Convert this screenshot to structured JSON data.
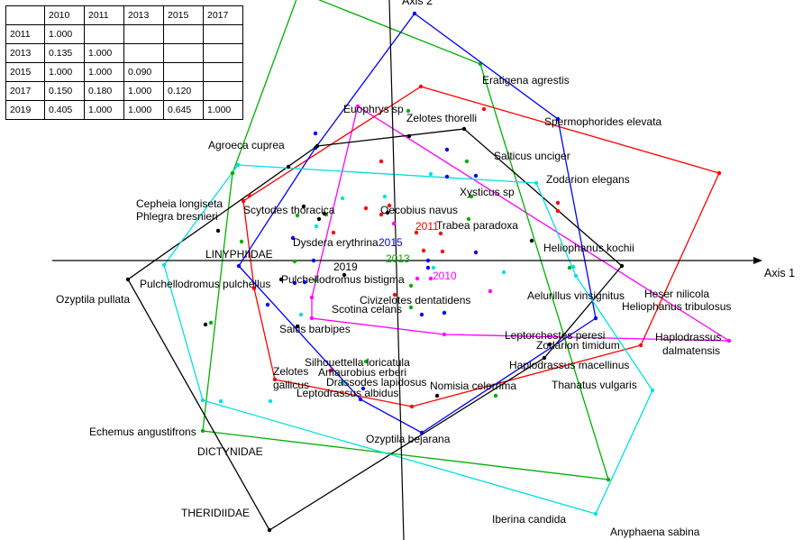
{
  "table": {
    "header": [
      "",
      "2010",
      "2011",
      "2013",
      "2015",
      "2017"
    ],
    "rows": [
      [
        "2011",
        "1.000",
        "",
        "",
        "",
        ""
      ],
      [
        "2013",
        "0.135",
        "1.000",
        "",
        "",
        ""
      ],
      [
        "2015",
        "1.000",
        "1.000",
        "0.090",
        "",
        ""
      ],
      [
        "2017",
        "0.150",
        "0.180",
        "1.000",
        "0.120",
        ""
      ],
      [
        "2019",
        "0.405",
        "1.000",
        "1.000",
        "0.645",
        "1.000"
      ]
    ]
  },
  "chart_data": {
    "type": "scatter",
    "x_axis_label": "Axis 1",
    "y_axis_label": "Axis 2",
    "xlim": [
      -440,
      460
    ],
    "ylim": [
      -310,
      290
    ],
    "polygon_groups": [
      {
        "year": "2010",
        "color": "#ff00ff",
        "vertices": [
          [
            -43,
            171
          ],
          [
            369,
            -89
          ],
          [
            53,
            -82
          ],
          [
            -94,
            -64
          ],
          [
            -94,
            -41
          ]
        ]
      },
      {
        "year": "2011",
        "color": "#ff0000",
        "vertices": [
          [
            27,
            193
          ],
          [
            358,
            97
          ],
          [
            271,
            -94
          ],
          [
            17,
            -162
          ],
          [
            -135,
            -132
          ],
          [
            -158,
            -31
          ],
          [
            -170,
            66
          ]
        ]
      },
      {
        "year": "2013",
        "color": "#00b000",
        "vertices": [
          [
            -108,
            298
          ],
          [
            93,
            218
          ],
          [
            235,
            -243
          ],
          [
            -215,
            -189
          ],
          [
            -182,
            97
          ]
        ]
      },
      {
        "year": "2015",
        "color": "#0000ff",
        "vertices": [
          [
            20,
            274
          ],
          [
            179,
            157
          ],
          [
            221,
            -64
          ],
          [
            28,
            -191
          ],
          [
            -40,
            -154
          ],
          [
            -175,
            -6
          ],
          [
            -90,
            125
          ]
        ]
      },
      {
        "year": "2017",
        "color": "#000000",
        "vertices": [
          [
            -88,
            127
          ],
          [
            75,
            146
          ],
          [
            250,
            -6
          ],
          [
            164,
            -108
          ],
          [
            -141,
            -299
          ],
          [
            -298,
            -21
          ]
        ]
      },
      {
        "year": "2019",
        "color": "#00e0e0",
        "vertices": [
          [
            -176,
            106
          ],
          [
            155,
            86
          ],
          [
            199,
            -17
          ],
          [
            284,
            -144
          ],
          [
            221,
            -281
          ],
          [
            -215,
            -155
          ],
          [
            -258,
            -5
          ]
        ]
      }
    ],
    "points": [
      {
        "color": "#ff0000",
        "x": -163,
        "y": 72
      },
      {
        "color": "#ff0000",
        "x": -34,
        "y": 58
      },
      {
        "color": "#ff0000",
        "x": -17,
        "y": 51
      },
      {
        "color": "#ff0000",
        "x": -8,
        "y": 61
      },
      {
        "color": "#ff0000",
        "x": 22,
        "y": 31
      },
      {
        "color": "#ff0000",
        "x": 49,
        "y": 30
      },
      {
        "color": "#ff0000",
        "x": 30,
        "y": 11
      },
      {
        "color": "#ff0000",
        "x": 51,
        "y": 10
      },
      {
        "color": "#ff0000",
        "x": -2,
        "y": -38
      },
      {
        "color": "#ff0000",
        "x": 179,
        "y": 64
      },
      {
        "color": "#ff0000",
        "x": 179,
        "y": 55
      },
      {
        "color": "#ff0000",
        "x": 97,
        "y": 168
      },
      {
        "color": "#ff0000",
        "x": -70,
        "y": 31
      },
      {
        "color": "#ff0000",
        "x": -17,
        "y": 110
      },
      {
        "color": "#ff0000",
        "x": -73,
        "y": -122
      },
      {
        "color": "#00b000",
        "x": 13,
        "y": 166
      },
      {
        "color": "#00b000",
        "x": 78,
        "y": 110
      },
      {
        "color": "#00b000",
        "x": -110,
        "y": 50
      },
      {
        "color": "#00b000",
        "x": -78,
        "y": 51
      },
      {
        "color": "#00b000",
        "x": -113,
        "y": -1
      },
      {
        "color": "#00b000",
        "x": 16,
        "y": -28
      },
      {
        "color": "#00b000",
        "x": 16,
        "y": -52
      },
      {
        "color": "#00b000",
        "x": 83,
        "y": 71
      },
      {
        "color": "#00b000",
        "x": -206,
        "y": -69
      },
      {
        "color": "#00b000",
        "x": -172,
        "y": 21
      },
      {
        "color": "#00b000",
        "x": 110,
        "y": -150
      },
      {
        "color": "#00b000",
        "x": 192,
        "y": -8
      },
      {
        "color": "#00b000",
        "x": -182,
        "y": 97
      },
      {
        "color": "#00b000",
        "x": -34,
        "y": -112
      },
      {
        "color": "#00b000",
        "x": -90,
        "y": -22
      },
      {
        "color": "#00b000",
        "x": 80,
        "y": 46
      },
      {
        "color": "#0000ff",
        "x": -90,
        "y": 141
      },
      {
        "color": "#0000ff",
        "x": 56,
        "y": 123
      },
      {
        "color": "#0000ff",
        "x": 56,
        "y": 93
      },
      {
        "color": "#0000ff",
        "x": 88,
        "y": 94
      },
      {
        "color": "#0000ff",
        "x": -115,
        "y": 25
      },
      {
        "color": "#0000ff",
        "x": -113,
        "y": -25
      },
      {
        "color": "#0000ff",
        "x": -92,
        "y": 0
      },
      {
        "color": "#0000ff",
        "x": -143,
        "y": -49
      },
      {
        "color": "#0000ff",
        "x": 35,
        "y": -8
      },
      {
        "color": "#0000ff",
        "x": 88,
        "y": 9
      },
      {
        "color": "#0000ff",
        "x": 53,
        "y": -58
      },
      {
        "color": "#0000ff",
        "x": -102,
        "y": -24
      },
      {
        "color": "#0000ff",
        "x": -37,
        "y": -142
      },
      {
        "color": "#0000ff",
        "x": 35,
        "y": 0
      },
      {
        "color": "#0000ff",
        "x": 28,
        "y": -60
      },
      {
        "color": "#000000",
        "x": -120,
        "y": 104
      },
      {
        "color": "#000000",
        "x": -103,
        "y": 60
      },
      {
        "color": "#000000",
        "x": -80,
        "y": 52
      },
      {
        "color": "#000000",
        "x": -86,
        "y": 46
      },
      {
        "color": "#000000",
        "x": -10,
        "y": 53
      },
      {
        "color": "#000000",
        "x": 14,
        "y": 138
      },
      {
        "color": "#000000",
        "x": -198,
        "y": 33
      },
      {
        "color": "#000000",
        "x": -128,
        "y": -21
      },
      {
        "color": "#000000",
        "x": -110,
        "y": -73
      },
      {
        "color": "#000000",
        "x": -212,
        "y": -71
      },
      {
        "color": "#000000",
        "x": 45,
        "y": -150
      },
      {
        "color": "#000000",
        "x": 150,
        "y": 22
      },
      {
        "color": "#000000",
        "x": -58,
        "y": -16
      },
      {
        "color": "#000000",
        "x": 170,
        "y": -93
      },
      {
        "color": "#00e0e0",
        "x": -60,
        "y": 69
      },
      {
        "color": "#00e0e0",
        "x": -13,
        "y": 71
      },
      {
        "color": "#00e0e0",
        "x": -106,
        "y": -60
      },
      {
        "color": "#00e0e0",
        "x": -195,
        "y": -156
      },
      {
        "color": "#00e0e0",
        "x": -140,
        "y": -156
      },
      {
        "color": "#00e0e0",
        "x": -60,
        "y": -136
      },
      {
        "color": "#00e0e0",
        "x": 196,
        "y": -7
      },
      {
        "color": "#00e0e0",
        "x": 119,
        "y": -13
      },
      {
        "color": "#00e0e0",
        "x": 41,
        "y": -8
      },
      {
        "color": "#00e0e0",
        "x": 38,
        "y": 96
      },
      {
        "color": "#00e0e0",
        "x": -89,
        "y": 38
      },
      {
        "color": "#ff00ff",
        "x": 38,
        "y": -20
      },
      {
        "color": "#ff00ff",
        "x": 104,
        "y": -34
      },
      {
        "color": "#ff00ff",
        "x": -3,
        "y": 41
      },
      {
        "color": "#ff00ff",
        "x": 23,
        "y": -20
      }
    ],
    "annotations": [
      {
        "text": "Eratigena agrestis",
        "x": 95,
        "y": 196
      },
      {
        "text": "Euophrys sp",
        "x": -59,
        "y": 164
      },
      {
        "text": "Zelotes thorelli",
        "x": 11,
        "y": 154
      },
      {
        "text": "Spermophorides elevata",
        "x": 164,
        "y": 150
      },
      {
        "text": "Agroeca cuprea",
        "x": -209,
        "y": 124
      },
      {
        "text": "Salticus unciger",
        "x": 108,
        "y": 112
      },
      {
        "text": "Zodarion elegans",
        "x": 166,
        "y": 86
      },
      {
        "text": "Xysticus sp",
        "x": 70,
        "y": 72
      },
      {
        "text": "Cepheia longiseta",
        "x": -289,
        "y": 59
      },
      {
        "text": "Phlegra bresnieri",
        "x": -289,
        "y": 45
      },
      {
        "text": "Scytodes thoracica",
        "x": -170,
        "y": 52
      },
      {
        "text": "Oecobius navus",
        "x": -18,
        "y": 52
      },
      {
        "text": "Trabea paradoxa",
        "x": 44,
        "y": 35
      },
      {
        "text": "Heliophanus kochii",
        "x": 163,
        "y": 10
      },
      {
        "text": "LINYPHIIDAE",
        "x": -212,
        "y": 3
      },
      {
        "text": "Dysdera erythrina",
        "x": -115,
        "y": 16
      },
      {
        "text": "Pulchellodromus pulchellus",
        "x": -285,
        "y": -30
      },
      {
        "text": "Pulchellodromus bistigma",
        "x": -128,
        "y": -25
      },
      {
        "text": "Ozyptila pullata",
        "x": -378,
        "y": -47
      },
      {
        "text": "Civizelotes dentatidens",
        "x": -41,
        "y": -48
      },
      {
        "text": "Scotina celans",
        "x": -72,
        "y": -58
      },
      {
        "text": "Aelurillus vinsignitus",
        "x": 145,
        "y": -43
      },
      {
        "text": "Heser nilicola",
        "x": 275,
        "y": -41
      },
      {
        "text": "Heliophanus tribulosus",
        "x": 250,
        "y": -55
      },
      {
        "text": "Saitis barbipes",
        "x": -130,
        "y": -80
      },
      {
        "text": "Leptorchestes peresi",
        "x": 120,
        "y": -87
      },
      {
        "text": "Zodarion timidum",
        "x": 155,
        "y": -98
      },
      {
        "text": "Haplodrassus",
        "x": 287,
        "y": -89
      },
      {
        "text": "dalmatensis",
        "x": 295,
        "y": -104
      },
      {
        "text": "Haplodrassus macellinus",
        "x": 125,
        "y": -120
      },
      {
        "text": "Silhouettella loricatula",
        "x": -102,
        "y": -117
      },
      {
        "text": "Amaurobius erberi",
        "x": -87,
        "y": -128
      },
      {
        "text": "Drassodes lapidosus",
        "x": -78,
        "y": -139
      },
      {
        "text": "Zelotes",
        "x": -137,
        "y": -127
      },
      {
        "text": "gallicus",
        "x": -137,
        "y": -142
      },
      {
        "text": "Nomisia celerrima",
        "x": 37,
        "y": -143
      },
      {
        "text": "Thanatus vulgaris",
        "x": 172,
        "y": -142
      },
      {
        "text": "Leptodrassus albidus",
        "x": -111,
        "y": -151
      },
      {
        "text": "Echemus angustifrons",
        "x": -341,
        "y": -194
      },
      {
        "text": "Ozyptila bejarana",
        "x": -34,
        "y": -202
      },
      {
        "text": "DICTYNIDAE",
        "x": -221,
        "y": -216
      },
      {
        "text": "THERIDIIDAE",
        "x": -239,
        "y": -284
      },
      {
        "text": "Iberina candida",
        "x": 106,
        "y": -291
      },
      {
        "text": "Anyphaena sabina",
        "x": 237,
        "y": -305
      }
    ],
    "year_labels": [
      {
        "text": "2015",
        "color": "#0000ff",
        "x": -20,
        "y": 16
      },
      {
        "text": "2011",
        "color": "#ff0000",
        "x": 21,
        "y": 34
      },
      {
        "text": "2013",
        "color": "#00b000",
        "x": -12,
        "y": -2
      },
      {
        "text": "2019",
        "color": "#000000",
        "x": -70,
        "y": -11
      },
      {
        "text": "2010",
        "color": "#ff00ff",
        "x": 40,
        "y": -21
      }
    ]
  }
}
